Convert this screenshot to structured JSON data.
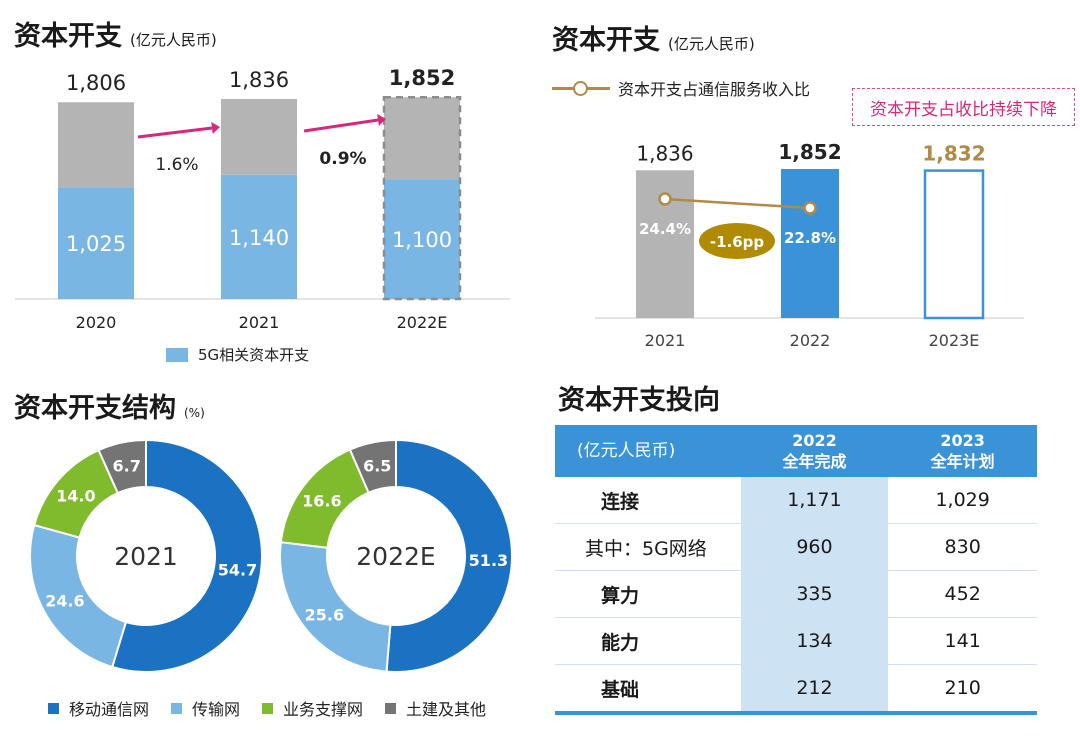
{
  "panels": {
    "capex_trend": {
      "title": "资本开支",
      "unit": "(亿元人民币)"
    },
    "capex_ratio": {
      "title": "资本开支",
      "unit": "(亿元人民币)",
      "note": "资本开支占收比持续下降"
    },
    "capex_structure": {
      "title": "资本开支结构",
      "unit": "(%)"
    },
    "capex_direction": {
      "title": "资本开支投向"
    }
  },
  "colors": {
    "gray": "#b4b4b4",
    "light_blue": "#79b6e4",
    "blue": "#1c72c2",
    "green": "#7fbb2c",
    "dark_gray": "#747474",
    "magenta": "#d6287a",
    "gold": "#b08a46",
    "mid_blue": "#3a93d6"
  },
  "chart_data": [
    {
      "type": "bar",
      "categories": [
        "2020",
        "2021",
        "2022E"
      ],
      "series": [
        {
          "name": "5G相关资本开支",
          "values": [
            1025,
            1140,
            1100
          ]
        },
        {
          "values": [
            781,
            696,
            752
          ]
        }
      ],
      "totals": [
        "1,806",
        "1,836",
        "1,852"
      ],
      "segment_labels": [
        "1,025",
        "1,140",
        "1,100"
      ],
      "growth_labels": [
        "1.6%",
        "0.9%"
      ],
      "ylim": [
        0,
        1900
      ]
    },
    {
      "type": "bar",
      "categories": [
        "2021",
        "2022",
        "2023E"
      ],
      "values": [
        1836,
        1852,
        1832
      ],
      "value_labels": [
        "1,836",
        "1,852",
        "1,832"
      ],
      "line_series": {
        "name": "资本开支占通信服务收入比",
        "values": [
          24.4,
          22.8
        ],
        "labels": [
          "24.4%",
          "22.8%"
        ]
      },
      "change_label": "-1.6pp",
      "ylim": [
        0,
        2400
      ]
    },
    {
      "type": "pie",
      "center_label": "2021",
      "categories": [
        "移动通信网",
        "传输网",
        "业务支撑网",
        "土建及其他"
      ],
      "values": [
        54.7,
        24.6,
        14.0,
        6.7
      ],
      "labels": [
        "54.7",
        "24.6",
        "14.0",
        "6.7"
      ]
    },
    {
      "type": "pie",
      "center_label": "2022E",
      "categories": [
        "移动通信网",
        "传输网",
        "业务支撑网",
        "土建及其他"
      ],
      "values": [
        51.3,
        25.6,
        16.6,
        6.5
      ],
      "labels": [
        "51.3",
        "25.6",
        "16.6",
        "6.5"
      ]
    },
    {
      "type": "table",
      "header": {
        "label": "(亿元人民币)",
        "col1": [
          "2022",
          "全年完成"
        ],
        "col2": [
          "2023",
          "全年计划"
        ]
      },
      "rows": [
        {
          "label": "连接",
          "v2022": "1,171",
          "v2023": "1,029"
        },
        {
          "label": "其中：5G网络",
          "v2022": "960",
          "v2023": "830"
        },
        {
          "label": "算力",
          "v2022": "335",
          "v2023": "452"
        },
        {
          "label": "能力",
          "v2022": "134",
          "v2023": "141"
        },
        {
          "label": "基础",
          "v2022": "212",
          "v2023": "210"
        }
      ]
    }
  ]
}
